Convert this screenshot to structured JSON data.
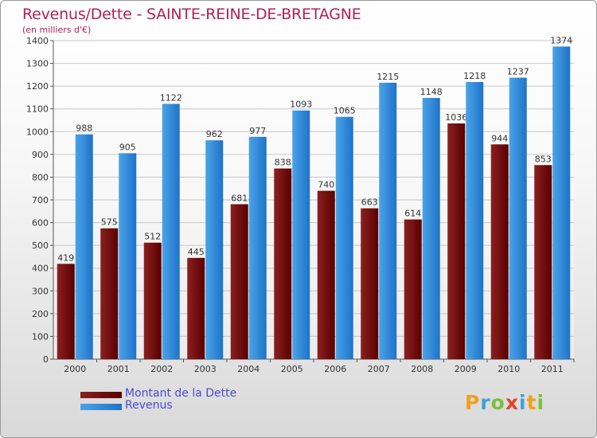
{
  "title": "Revenus/Dette - SAINTE-REINE-DE-BRETAGNE",
  "subtitle": "(en milliers d'€)",
  "legend": {
    "dette_label": "Montant de la Dette",
    "revenus_label": "Revenus"
  },
  "logo": {
    "text": "Proxiti"
  },
  "colors": {
    "dette": "#8b2020",
    "dette_dark": "#5a0000",
    "revenus": "#4aa3e8",
    "revenus_dark": "#1f73c8",
    "title": "#b0205a",
    "legend_text": "#4b4bd6"
  },
  "chart_data": {
    "type": "bar",
    "categories": [
      "2000",
      "2001",
      "2002",
      "2003",
      "2004",
      "2005",
      "2006",
      "2007",
      "2008",
      "2009",
      "2010",
      "2011"
    ],
    "series": [
      {
        "name": "Montant de la Dette",
        "values": [
          419,
          575,
          512,
          445,
          681,
          838,
          740,
          663,
          614,
          1036,
          944,
          853
        ]
      },
      {
        "name": "Revenus",
        "values": [
          988,
          905,
          1122,
          962,
          977,
          1093,
          1065,
          1215,
          1148,
          1218,
          1237,
          1374
        ]
      }
    ],
    "ylim": [
      0,
      1400
    ],
    "yticks": [
      0,
      100,
      200,
      300,
      400,
      500,
      600,
      700,
      800,
      900,
      1000,
      1100,
      1200,
      1300,
      1400
    ],
    "grid": true,
    "legend_position": "bottom-left"
  }
}
